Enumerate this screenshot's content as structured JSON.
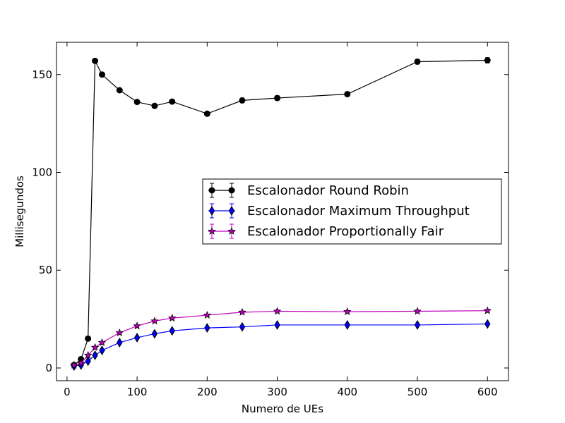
{
  "chart_data": {
    "type": "line",
    "title": "",
    "xlabel": "Numero de UEs",
    "ylabel": "Millisegundos",
    "xlim": [
      -15,
      630
    ],
    "ylim": [
      -6.5,
      166.5
    ],
    "xticks": [
      0,
      100,
      200,
      300,
      400,
      500,
      600
    ],
    "yticks": [
      0,
      50,
      100,
      150
    ],
    "x": [
      10,
      20,
      30,
      40,
      50,
      75,
      100,
      125,
      150,
      200,
      250,
      300,
      400,
      500,
      600
    ],
    "series": [
      {
        "name": "Escalonador Round Robin",
        "color": "#000000",
        "marker": "circle",
        "values": [
          1.5,
          4.5,
          15,
          157,
          150,
          142,
          136,
          134,
          136.2,
          130,
          136.8,
          138,
          140,
          156.6,
          157.3
        ],
        "errors": [
          0.3,
          0.4,
          0.6,
          1.0,
          0.8,
          0.8,
          0.8,
          0.8,
          1.0,
          0.8,
          1.2,
          1.2,
          0.8,
          1.2,
          1.4
        ]
      },
      {
        "name": "Escalonador Maximum Throughput",
        "color": "#0000ff",
        "marker": "diamond",
        "values": [
          1.0,
          1.5,
          3.5,
          6.5,
          9.0,
          13.0,
          15.5,
          17.5,
          19.0,
          20.5,
          21.0,
          22.0,
          22.0,
          22.0,
          22.5
        ],
        "errors": [
          0.2,
          0.2,
          0.3,
          0.4,
          0.4,
          0.5,
          0.5,
          0.5,
          0.5,
          0.5,
          0.6,
          0.6,
          0.5,
          0.5,
          0.6
        ]
      },
      {
        "name": "Escalonador Proportionally Fair",
        "color": "#bf00bf",
        "marker": "star",
        "values": [
          1.5,
          2.5,
          6.5,
          10.5,
          13.0,
          18.0,
          21.5,
          24.0,
          25.5,
          27.0,
          28.5,
          29.0,
          28.8,
          29.0,
          29.3
        ],
        "errors": [
          0.2,
          0.2,
          0.3,
          0.4,
          0.4,
          0.5,
          0.5,
          0.5,
          0.5,
          0.5,
          0.6,
          0.6,
          0.5,
          0.5,
          0.6
        ]
      }
    ],
    "legend_position": "center-right",
    "grid": false
  }
}
